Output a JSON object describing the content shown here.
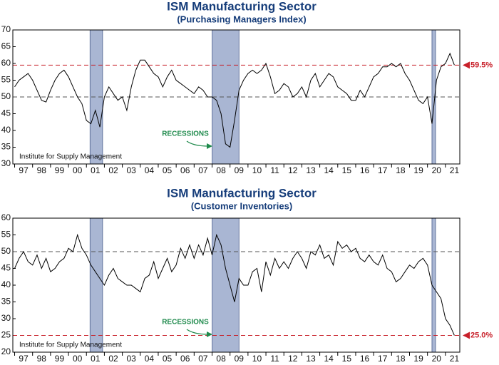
{
  "chart_data": [
    {
      "type": "line",
      "title": "ISM Manufacturing Sector",
      "subtitle": "(Purchasing Managers Index)",
      "color": "#000000",
      "x": [
        1997,
        1997.25,
        1997.5,
        1997.75,
        1998,
        1998.25,
        1998.5,
        1998.75,
        1999,
        1999.25,
        1999.5,
        1999.75,
        2000,
        2000.25,
        2000.5,
        2000.75,
        2001,
        2001.25,
        2001.5,
        2001.75,
        2002,
        2002.25,
        2002.5,
        2002.75,
        2003,
        2003.25,
        2003.5,
        2003.75,
        2004,
        2004.25,
        2004.5,
        2004.75,
        2005,
        2005.25,
        2005.5,
        2005.75,
        2006,
        2006.25,
        2006.5,
        2006.75,
        2007,
        2007.25,
        2007.5,
        2007.75,
        2008,
        2008.25,
        2008.5,
        2008.75,
        2009,
        2009.25,
        2009.5,
        2009.75,
        2010,
        2010.25,
        2010.5,
        2010.75,
        2011,
        2011.25,
        2011.5,
        2011.75,
        2012,
        2012.25,
        2012.5,
        2012.75,
        2013,
        2013.25,
        2013.5,
        2013.75,
        2014,
        2014.25,
        2014.5,
        2014.75,
        2015,
        2015.25,
        2015.5,
        2015.75,
        2016,
        2016.25,
        2016.5,
        2016.75,
        2017,
        2017.25,
        2017.5,
        2017.75,
        2018,
        2018.25,
        2018.5,
        2018.75,
        2019,
        2019.25,
        2019.5,
        2019.75,
        2020,
        2020.25,
        2020.5,
        2020.75,
        2021,
        2021.25,
        2021.5
      ],
      "values": [
        53,
        55,
        56,
        57,
        55,
        52,
        49,
        48.5,
        52,
        55,
        57,
        58,
        56,
        53,
        50,
        48,
        43,
        42,
        46,
        41,
        50,
        53,
        51,
        49,
        50,
        46,
        53,
        58,
        61,
        61,
        59,
        57,
        56,
        53,
        56,
        58,
        55,
        54,
        53,
        52,
        51,
        53,
        52,
        50,
        50,
        49,
        45,
        36,
        35,
        43,
        52,
        55,
        57,
        58,
        57,
        58,
        60,
        56,
        51,
        52,
        54,
        53,
        50,
        51,
        53,
        50,
        55,
        57,
        53,
        55,
        57,
        56,
        53,
        52,
        51,
        49,
        49,
        52,
        50,
        53,
        56,
        57,
        59,
        59,
        60,
        59,
        60,
        57,
        55,
        52,
        49,
        48,
        50,
        42,
        55,
        59,
        60,
        63,
        59.5
      ],
      "xlim": [
        1996.9,
        2021.8
      ],
      "xticks": [
        {
          "value": 1997.5,
          "label": "97"
        },
        {
          "value": 1998.5,
          "label": "98"
        },
        {
          "value": 1999.5,
          "label": "99"
        },
        {
          "value": 2000.5,
          "label": "00"
        },
        {
          "value": 2001.5,
          "label": "01"
        },
        {
          "value": 2002.5,
          "label": "02"
        },
        {
          "value": 2003.5,
          "label": "03"
        },
        {
          "value": 2004.5,
          "label": "04"
        },
        {
          "value": 2005.5,
          "label": "05"
        },
        {
          "value": 2006.5,
          "label": "06"
        },
        {
          "value": 2007.5,
          "label": "07"
        },
        {
          "value": 2008.5,
          "label": "08"
        },
        {
          "value": 2009.5,
          "label": "09"
        },
        {
          "value": 2010.5,
          "label": "10"
        },
        {
          "value": 2011.5,
          "label": "11"
        },
        {
          "value": 2012.5,
          "label": "12"
        },
        {
          "value": 2013.5,
          "label": "13"
        },
        {
          "value": 2014.5,
          "label": "14"
        },
        {
          "value": 2015.5,
          "label": "15"
        },
        {
          "value": 2016.5,
          "label": "16"
        },
        {
          "value": 2017.5,
          "label": "17"
        },
        {
          "value": 2018.5,
          "label": "18"
        },
        {
          "value": 2019.5,
          "label": "19"
        },
        {
          "value": 2020.5,
          "label": "20"
        },
        {
          "value": 2021.5,
          "label": "21"
        }
      ],
      "ylim": [
        30,
        70
      ],
      "yticks": [
        30,
        35,
        40,
        45,
        50,
        55,
        60,
        65,
        70
      ],
      "shaded_regions": [
        [
          2001.2,
          2001.9
        ],
        [
          2008.0,
          2009.5
        ],
        [
          2020.25,
          2020.45
        ]
      ],
      "shade_color": "#a9b6d3",
      "reference_lines": [
        {
          "value": 50,
          "color": "#555555"
        },
        {
          "value": 59.5,
          "label": "59.5%",
          "color": "#c8202a"
        }
      ],
      "annotation": "RECESSIONS",
      "annotation_color": "#1f8a4c",
      "source": "Institute for Supply Management"
    },
    {
      "type": "line",
      "title": "ISM Manufacturing Sector",
      "subtitle": "(Customer Inventories)",
      "color": "#000000",
      "x": [
        1997,
        1997.25,
        1997.5,
        1997.75,
        1998,
        1998.25,
        1998.5,
        1998.75,
        1999,
        1999.25,
        1999.5,
        1999.75,
        2000,
        2000.25,
        2000.5,
        2000.75,
        2001,
        2001.25,
        2001.5,
        2001.75,
        2002,
        2002.25,
        2002.5,
        2002.75,
        2003,
        2003.25,
        2003.5,
        2003.75,
        2004,
        2004.25,
        2004.5,
        2004.75,
        2005,
        2005.25,
        2005.5,
        2005.75,
        2006,
        2006.25,
        2006.5,
        2006.75,
        2007,
        2007.25,
        2007.5,
        2007.75,
        2008,
        2008.25,
        2008.5,
        2008.75,
        2009,
        2009.25,
        2009.5,
        2009.75,
        2010,
        2010.25,
        2010.5,
        2010.75,
        2011,
        2011.25,
        2011.5,
        2011.75,
        2012,
        2012.25,
        2012.5,
        2012.75,
        2013,
        2013.25,
        2013.5,
        2013.75,
        2014,
        2014.25,
        2014.5,
        2014.75,
        2015,
        2015.25,
        2015.5,
        2015.75,
        2016,
        2016.25,
        2016.5,
        2016.75,
        2017,
        2017.25,
        2017.5,
        2017.75,
        2018,
        2018.25,
        2018.5,
        2018.75,
        2019,
        2019.25,
        2019.5,
        2019.75,
        2020,
        2020.25,
        2020.5,
        2020.75,
        2021,
        2021.25,
        2021.5
      ],
      "values": [
        45,
        48,
        50,
        47,
        46,
        49,
        45,
        48,
        44,
        45,
        47,
        48,
        51,
        50,
        55,
        51,
        49,
        46,
        44,
        42,
        40,
        43,
        45,
        42,
        41,
        40,
        40,
        39,
        38,
        42,
        43,
        47,
        42,
        45,
        48,
        44,
        46,
        51,
        48,
        52,
        48,
        52,
        49,
        54,
        49,
        55,
        52,
        45,
        40,
        35,
        42,
        40,
        40,
        44,
        45,
        38,
        47,
        43,
        48,
        45,
        47,
        45,
        48,
        50,
        48,
        45,
        50,
        49,
        52,
        48,
        49,
        46,
        53,
        51,
        52,
        50,
        51,
        48,
        47,
        49,
        47,
        46,
        49,
        45,
        44,
        41,
        42,
        44,
        46,
        45,
        47,
        48,
        46,
        40,
        38,
        36,
        30,
        28,
        25
      ],
      "xlim": [
        1996.9,
        2021.8
      ],
      "xticks": [
        {
          "value": 1997.5,
          "label": "97"
        },
        {
          "value": 1998.5,
          "label": "98"
        },
        {
          "value": 1999.5,
          "label": "99"
        },
        {
          "value": 2000.5,
          "label": "00"
        },
        {
          "value": 2001.5,
          "label": "01"
        },
        {
          "value": 2002.5,
          "label": "02"
        },
        {
          "value": 2003.5,
          "label": "03"
        },
        {
          "value": 2004.5,
          "label": "04"
        },
        {
          "value": 2005.5,
          "label": "05"
        },
        {
          "value": 2006.5,
          "label": "06"
        },
        {
          "value": 2007.5,
          "label": "07"
        },
        {
          "value": 2008.5,
          "label": "08"
        },
        {
          "value": 2009.5,
          "label": "09"
        },
        {
          "value": 2010.5,
          "label": "10"
        },
        {
          "value": 2011.5,
          "label": "11"
        },
        {
          "value": 2012.5,
          "label": "12"
        },
        {
          "value": 2013.5,
          "label": "13"
        },
        {
          "value": 2014.5,
          "label": "14"
        },
        {
          "value": 2015.5,
          "label": "15"
        },
        {
          "value": 2016.5,
          "label": "16"
        },
        {
          "value": 2017.5,
          "label": "17"
        },
        {
          "value": 2018.5,
          "label": "18"
        },
        {
          "value": 2019.5,
          "label": "19"
        },
        {
          "value": 2020.5,
          "label": "20"
        },
        {
          "value": 2021.5,
          "label": "21"
        }
      ],
      "ylim": [
        20,
        60
      ],
      "yticks": [
        20,
        25,
        30,
        35,
        40,
        45,
        50,
        55,
        60
      ],
      "shaded_regions": [
        [
          2001.2,
          2001.9
        ],
        [
          2008.0,
          2009.5
        ],
        [
          2020.25,
          2020.45
        ]
      ],
      "shade_color": "#a9b6d3",
      "reference_lines": [
        {
          "value": 50,
          "color": "#555555"
        },
        {
          "value": 25,
          "label": "25.0%",
          "color": "#c8202a"
        }
      ],
      "annotation": "RECESSIONS",
      "annotation_color": "#1f8a4c",
      "source": "Institute for Supply Management"
    }
  ]
}
